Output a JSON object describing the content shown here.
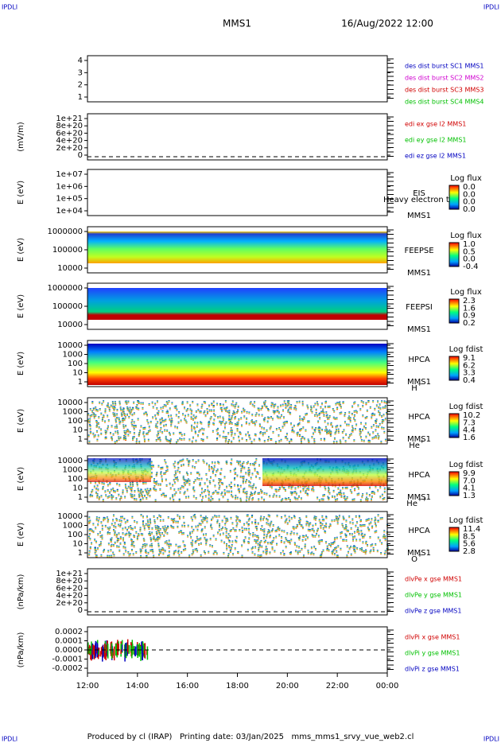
{
  "header": {
    "left": "IPDLI",
    "right": "IPDLI",
    "title": "MMS1",
    "date": "16/Aug/2022 12:00"
  },
  "panels": [
    {
      "ylabel": "",
      "yticks": [
        "4",
        "3",
        "2",
        "1"
      ],
      "legend": [
        {
          "text": "des dist burst SC1 MMS1",
          "color": "#0000c0"
        },
        {
          "text": "des dist burst SC2 MMS2",
          "color": "#d000d0"
        },
        {
          "text": "des dist burst SC3 MMS3",
          "color": "#d00000"
        },
        {
          "text": "des dist burst SC4 MMS4",
          "color": "#00c000"
        }
      ]
    },
    {
      "ylabel": "(mV/m)",
      "yticks": [
        "1e+21",
        "8e+20",
        "6e+20",
        "4e+20",
        "2e+20",
        "0"
      ],
      "dashed": true,
      "legend": [
        {
          "text": "edi ex gse l2 MMS1",
          "color": "#d00000"
        },
        {
          "text": "edi ey gse l2 MMS1",
          "color": "#00c000"
        },
        {
          "text": "edi ez gse l2 MMS1",
          "color": "#0000c0"
        }
      ]
    },
    {
      "ylabel": "E (eV)",
      "yticks": [
        "1e+07",
        "1e+06",
        "1e+05",
        "1e+04"
      ],
      "instrument": [
        "EIS",
        "MMS1"
      ],
      "overlay": "Heavy electron to",
      "colorbar": {
        "title": "Log flux",
        "labels": [
          "0.0",
          "0.0",
          "0.0",
          "0.0"
        ]
      }
    },
    {
      "ylabel": "E (eV)",
      "yticks": [
        "1000000",
        "100000",
        "10000"
      ],
      "instrument": [
        "FEEPSE",
        "MMS1"
      ],
      "spec": "feepse",
      "colorbar": {
        "title": "Log flux",
        "labels": [
          "1.0",
          "0.5",
          "0.0",
          "-0.4"
        ]
      }
    },
    {
      "ylabel": "E (eV)",
      "yticks": [
        "1000000",
        "100000",
        "10000"
      ],
      "instrument": [
        "FEEPSI",
        "MMS1"
      ],
      "spec": "feepsi",
      "colorbar": {
        "title": "Log flux",
        "labels": [
          "2.3",
          "1.6",
          "0.9",
          "0.2"
        ]
      }
    },
    {
      "ylabel": "E (eV)",
      "yticks": [
        "10000",
        "1000",
        "100",
        "10",
        "1"
      ],
      "instrument": [
        "HPCA",
        "MMS1"
      ],
      "ion": [
        "H",
        "+"
      ],
      "spec": "h",
      "colorbar": {
        "title": "Log fdist",
        "labels": [
          "9.1",
          "6.2",
          "3.3",
          "0.4"
        ]
      }
    },
    {
      "ylabel": "E (eV)",
      "yticks": [
        "10000",
        "1000",
        "100",
        "10",
        "1"
      ],
      "instrument": [
        "HPCA",
        "MMS1"
      ],
      "ion": [
        "He",
        "+"
      ],
      "spec": "sparse",
      "colorbar": {
        "title": "Log fdist",
        "labels": [
          "10.2",
          "7.3",
          "4.4",
          "1.6"
        ]
      }
    },
    {
      "ylabel": "E (eV)",
      "yticks": [
        "10000",
        "1000",
        "100",
        "10",
        "1"
      ],
      "instrument": [
        "HPCA",
        "MMS1"
      ],
      "ion": [
        "He",
        "++"
      ],
      "spec": "hepp",
      "colorbar": {
        "title": "Log fdist",
        "labels": [
          "9.9",
          "7.0",
          "4.1",
          "1.3"
        ]
      }
    },
    {
      "ylabel": "E (eV)",
      "yticks": [
        "10000",
        "1000",
        "100",
        "10",
        "1"
      ],
      "instrument": [
        "HPCA",
        "MMS1"
      ],
      "ion": [
        "O",
        "+"
      ],
      "spec": "sparse",
      "colorbar": {
        "title": "Log fdist",
        "labels": [
          "11.4",
          "8.5",
          "5.6",
          "2.8"
        ]
      }
    },
    {
      "ylabel": "(nPa/km)",
      "yticks": [
        "1e+21",
        "8e+20",
        "6e+20",
        "4e+20",
        "2e+20",
        "0"
      ],
      "dashed": true,
      "legend": [
        {
          "text": "dlvPe x gse MMS1",
          "color": "#d00000"
        },
        {
          "text": "dlvPe y gse MMS1",
          "color": "#00c000"
        },
        {
          "text": "dlvPe z gse MMS1",
          "color": "#0000c0"
        }
      ]
    },
    {
      "ylabel": "(nPa/km)",
      "yticks": [
        "0.0002",
        "0.0001",
        "0.0000",
        "-0.0001",
        "-0.0002"
      ],
      "dashed": true,
      "noise": true,
      "legend": [
        {
          "text": "dlvPi x gse MMS1",
          "color": "#d00000"
        },
        {
          "text": "dlvPi y gse MMS1",
          "color": "#00c000"
        },
        {
          "text": "dlvPi z gse MMS1",
          "color": "#0000c0"
        }
      ]
    }
  ],
  "xticks": [
    "12:00",
    "14:00",
    "16:00",
    "18:00",
    "20:00",
    "22:00",
    "00:00"
  ],
  "footer": "Produced by cl (IRAP)   Printing date: 03/Jan/2025   mms_mms1_srvy_vue_web2.cl"
}
